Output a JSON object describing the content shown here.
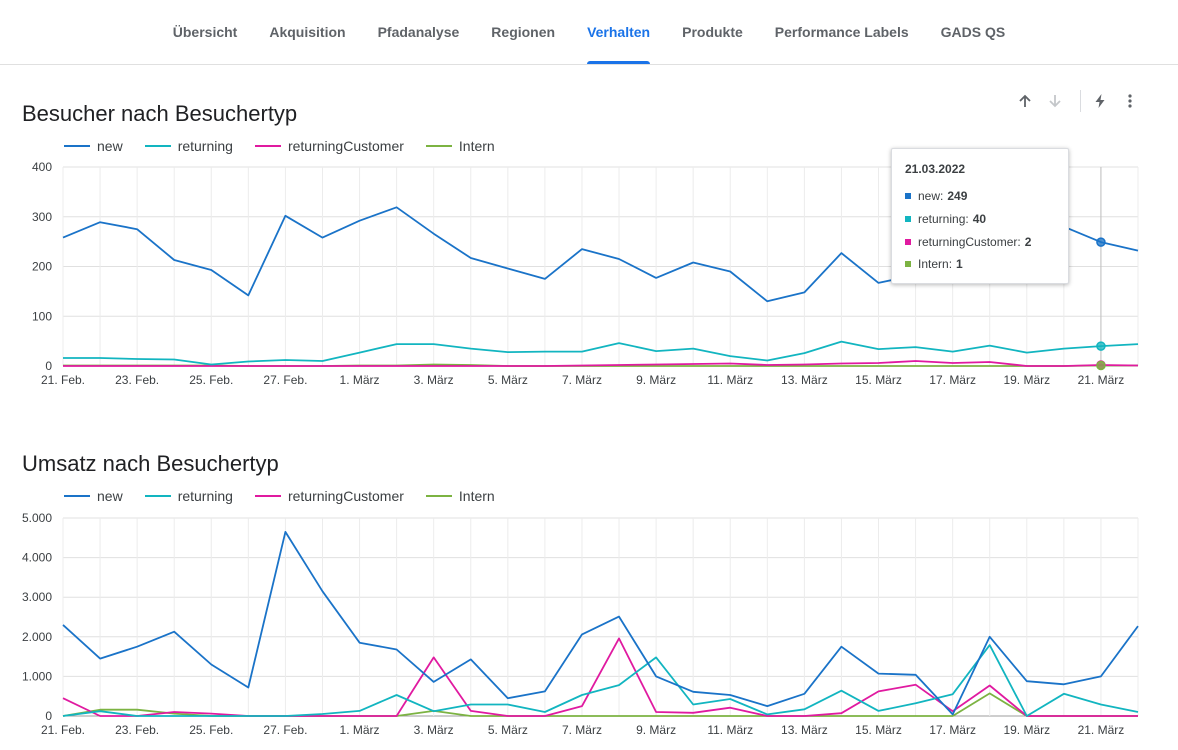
{
  "tabs": [
    {
      "label": "Übersicht",
      "active": false
    },
    {
      "label": "Akquisition",
      "active": false
    },
    {
      "label": "Pfadanalyse",
      "active": false
    },
    {
      "label": "Regionen",
      "active": false
    },
    {
      "label": "Verhalten",
      "active": true
    },
    {
      "label": "Produkte",
      "active": false
    },
    {
      "label": "Performance Labels",
      "active": false
    },
    {
      "label": "GADS QS",
      "active": false
    }
  ],
  "toolbar": {
    "icons": [
      "arrow-up-icon",
      "arrow-down-icon",
      "lightning-icon",
      "more-vert-icon"
    ]
  },
  "colors": {
    "new": "#1a73c8",
    "returning": "#12b5c0",
    "returningCustomer": "#e01aa0",
    "Intern": "#7cb342",
    "accent": "#1a73e8"
  },
  "tooltip": {
    "date": "21.03.2022",
    "rows": [
      {
        "name": "new",
        "value": "249",
        "color": "#1a73c8"
      },
      {
        "name": "returning",
        "value": "40",
        "color": "#12b5c0"
      },
      {
        "name": "returningCustomer",
        "value": "2",
        "color": "#e01aa0"
      },
      {
        "name": "Intern",
        "value": "1",
        "color": "#7cb342"
      }
    ]
  },
  "chart_data": [
    {
      "type": "line",
      "title": "Besucher nach Besuchertyp",
      "x": [
        "21. Feb.",
        "22. Feb.",
        "23. Feb.",
        "24. Feb.",
        "25. Feb.",
        "26. Feb.",
        "27. Feb.",
        "28. Feb.",
        "1. März",
        "2. März",
        "3. März",
        "4. März",
        "5. März",
        "6. März",
        "7. März",
        "8. März",
        "9. März",
        "10. März",
        "11. März",
        "12. März",
        "13. März",
        "14. März",
        "15. März",
        "16. März",
        "17. März",
        "18. März",
        "19. März",
        "20. März",
        "21. März",
        "22. März"
      ],
      "xticks": [
        "21. Feb.",
        "23. Feb.",
        "25. Feb.",
        "27. Feb.",
        "1. März",
        "3. März",
        "5. März",
        "7. März",
        "9. März",
        "11. März",
        "13. März",
        "15. März",
        "17. März",
        "19. März",
        "21. März"
      ],
      "yticks": [
        "0",
        "100",
        "200",
        "300",
        "400"
      ],
      "ylim": [
        0,
        400
      ],
      "grid": true,
      "legend": "top-left",
      "series": [
        {
          "name": "new",
          "values": [
            258,
            289,
            275,
            213,
            193,
            142,
            302,
            258,
            292,
            319,
            266,
            217,
            196,
            175,
            235,
            215,
            177,
            208,
            190,
            130,
            148,
            227,
            167,
            183,
            205,
            190,
            205,
            280,
            249,
            232
          ]
        },
        {
          "name": "returning",
          "values": [
            16,
            16,
            14,
            13,
            3,
            9,
            12,
            10,
            27,
            44,
            44,
            35,
            28,
            29,
            29,
            46,
            30,
            35,
            20,
            11,
            26,
            49,
            34,
            38,
            29,
            41,
            27,
            35,
            40,
            44
          ]
        },
        {
          "name": "returningCustomer",
          "values": [
            0,
            0,
            0,
            0,
            0,
            0,
            0,
            0,
            0,
            0,
            0,
            0,
            0,
            0,
            1,
            2,
            3,
            4,
            5,
            2,
            3,
            5,
            6,
            10,
            6,
            8,
            0,
            0,
            2,
            1
          ]
        },
        {
          "name": "Intern",
          "values": [
            1,
            1,
            1,
            1,
            1,
            0,
            0,
            0,
            1,
            1,
            3,
            2,
            0,
            0,
            0,
            0,
            0,
            0,
            0,
            0,
            0,
            0,
            0,
            0,
            0,
            0,
            0,
            0,
            1,
            1
          ]
        }
      ]
    },
    {
      "type": "line",
      "title": "Umsatz nach Besuchertyp",
      "x": [
        "21. Feb.",
        "22. Feb.",
        "23. Feb.",
        "24. Feb.",
        "25. Feb.",
        "26. Feb.",
        "27. Feb.",
        "28. Feb.",
        "1. März",
        "2. März",
        "3. März",
        "4. März",
        "5. März",
        "6. März",
        "7. März",
        "8. März",
        "9. März",
        "10. März",
        "11. März",
        "12. März",
        "13. März",
        "14. März",
        "15. März",
        "16. März",
        "17. März",
        "18. März",
        "19. März",
        "20. März",
        "21. März",
        "22. März"
      ],
      "xticks": [
        "21. Feb.",
        "23. Feb.",
        "25. Feb.",
        "27. Feb.",
        "1. März",
        "3. März",
        "5. März",
        "7. März",
        "9. März",
        "11. März",
        "13. März",
        "15. März",
        "17. März",
        "19. März",
        "21. März"
      ],
      "yticks": [
        "0",
        "1.000",
        "2.000",
        "3.000",
        "4.000",
        "5.000"
      ],
      "ylim": [
        0,
        5000
      ],
      "grid": true,
      "legend": "top-left",
      "series": [
        {
          "name": "new",
          "values": [
            2300,
            1450,
            1750,
            2130,
            1300,
            720,
            4650,
            3150,
            1850,
            1680,
            860,
            1430,
            450,
            620,
            2060,
            2510,
            1000,
            610,
            530,
            250,
            560,
            1750,
            1070,
            1040,
            40,
            2000,
            880,
            800,
            1000,
            2270
          ]
        },
        {
          "name": "returning",
          "values": [
            0,
            120,
            0,
            0,
            0,
            0,
            0,
            50,
            130,
            530,
            120,
            290,
            290,
            100,
            530,
            780,
            1480,
            290,
            430,
            40,
            170,
            640,
            130,
            320,
            550,
            1790,
            0,
            560,
            290,
            100
          ]
        },
        {
          "name": "returningCustomer",
          "values": [
            450,
            0,
            0,
            100,
            60,
            0,
            0,
            0,
            0,
            0,
            1480,
            130,
            0,
            0,
            250,
            1960,
            100,
            80,
            210,
            0,
            0,
            70,
            620,
            790,
            120,
            770,
            0,
            0,
            0,
            0
          ]
        },
        {
          "name": "Intern",
          "values": [
            0,
            160,
            160,
            60,
            0,
            0,
            0,
            0,
            0,
            0,
            130,
            0,
            0,
            0,
            0,
            0,
            0,
            0,
            0,
            0,
            0,
            0,
            0,
            0,
            0,
            570,
            0,
            0,
            0,
            0
          ]
        }
      ]
    }
  ]
}
